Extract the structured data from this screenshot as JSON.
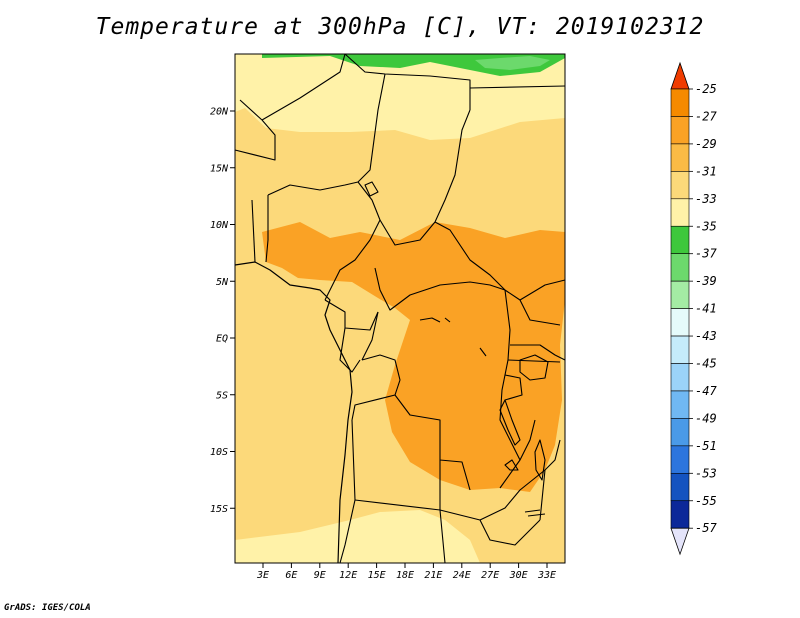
{
  "title": "Temperature at 300hPa [C], VT: 2019102312",
  "footer": "GrADS: IGES/COLA",
  "map": {
    "lat_labels": [
      "20N",
      "15N",
      "10N",
      "5N",
      "EQ",
      "5S",
      "10S",
      "15S"
    ],
    "lon_labels": [
      "3E",
      "6E",
      "9E",
      "12E",
      "15E",
      "18E",
      "21E",
      "24E",
      "27E",
      "30E",
      "33E"
    ]
  },
  "colorbar": {
    "labels": [
      "-25",
      "-27",
      "-29",
      "-31",
      "-33",
      "-35",
      "-37",
      "-39",
      "-41",
      "-43",
      "-45",
      "-47",
      "-49",
      "-51",
      "-53",
      "-55",
      "-57"
    ],
    "colors": [
      "#f05000",
      "#f58a00",
      "#faa225",
      "#fbbb45",
      "#fcd97a",
      "#fff2a8",
      "#3ec83c",
      "#6cd96c",
      "#a4eca4",
      "#e5fbfb",
      "#c5ecfb",
      "#9bd3f8",
      "#70b8f3",
      "#4a9ae8",
      "#2c75dd",
      "#1453c0",
      "#0c2899",
      "#060a6e"
    ],
    "top_color": "#f03c00",
    "bottom_color": "#e4e4fa"
  }
}
